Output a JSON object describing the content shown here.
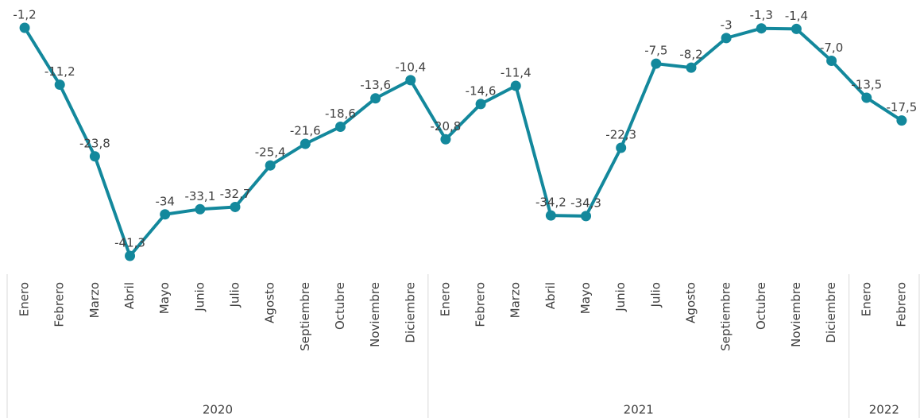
{
  "chart_data": {
    "type": "line",
    "color": "#13889c",
    "groups": [
      {
        "name": "2020",
        "categories": [
          "Enero",
          "Febrero",
          "Marzo",
          "Abril",
          "Mayo",
          "Junio",
          "Julio",
          "Agosto",
          "Septiembre",
          "Octubre",
          "Noviembre",
          "Diciembre"
        ]
      },
      {
        "name": "2021",
        "categories": [
          "Enero",
          "Febrero",
          "Marzo",
          "Abril",
          "Mayo",
          "Junio",
          "Julio",
          "Agosto",
          "Septiembre",
          "Octubre",
          "Noviembre",
          "Diciembre"
        ]
      },
      {
        "name": "2022",
        "categories": [
          "Enero",
          "Febrero"
        ]
      }
    ],
    "values": [
      -1.2,
      -11.2,
      -23.8,
      -41.3,
      -34,
      -33.1,
      -32.7,
      -25.4,
      -21.6,
      -18.6,
      -13.6,
      -10.4,
      -20.8,
      -14.6,
      -11.4,
      -34.2,
      -34.3,
      -22.3,
      -7.5,
      -8.2,
      -3,
      -1.3,
      -1.4,
      -7.0,
      -13.5,
      -17.5
    ],
    "value_labels": [
      "-1,2",
      "-11,2",
      "-23,8",
      "-41,3",
      "-34",
      "-33,1",
      "-32,7",
      "-25,4",
      "-21,6",
      "-18,6",
      "-13,6",
      "-10,4",
      "-20,8",
      "-14,6",
      "-11,4",
      "-34,2",
      "-34,3",
      "-22,3",
      "-7,5",
      "-8,2",
      "-3",
      "-1,3",
      "-1,4",
      "-7,0",
      "-13,5",
      "-17,5"
    ]
  }
}
